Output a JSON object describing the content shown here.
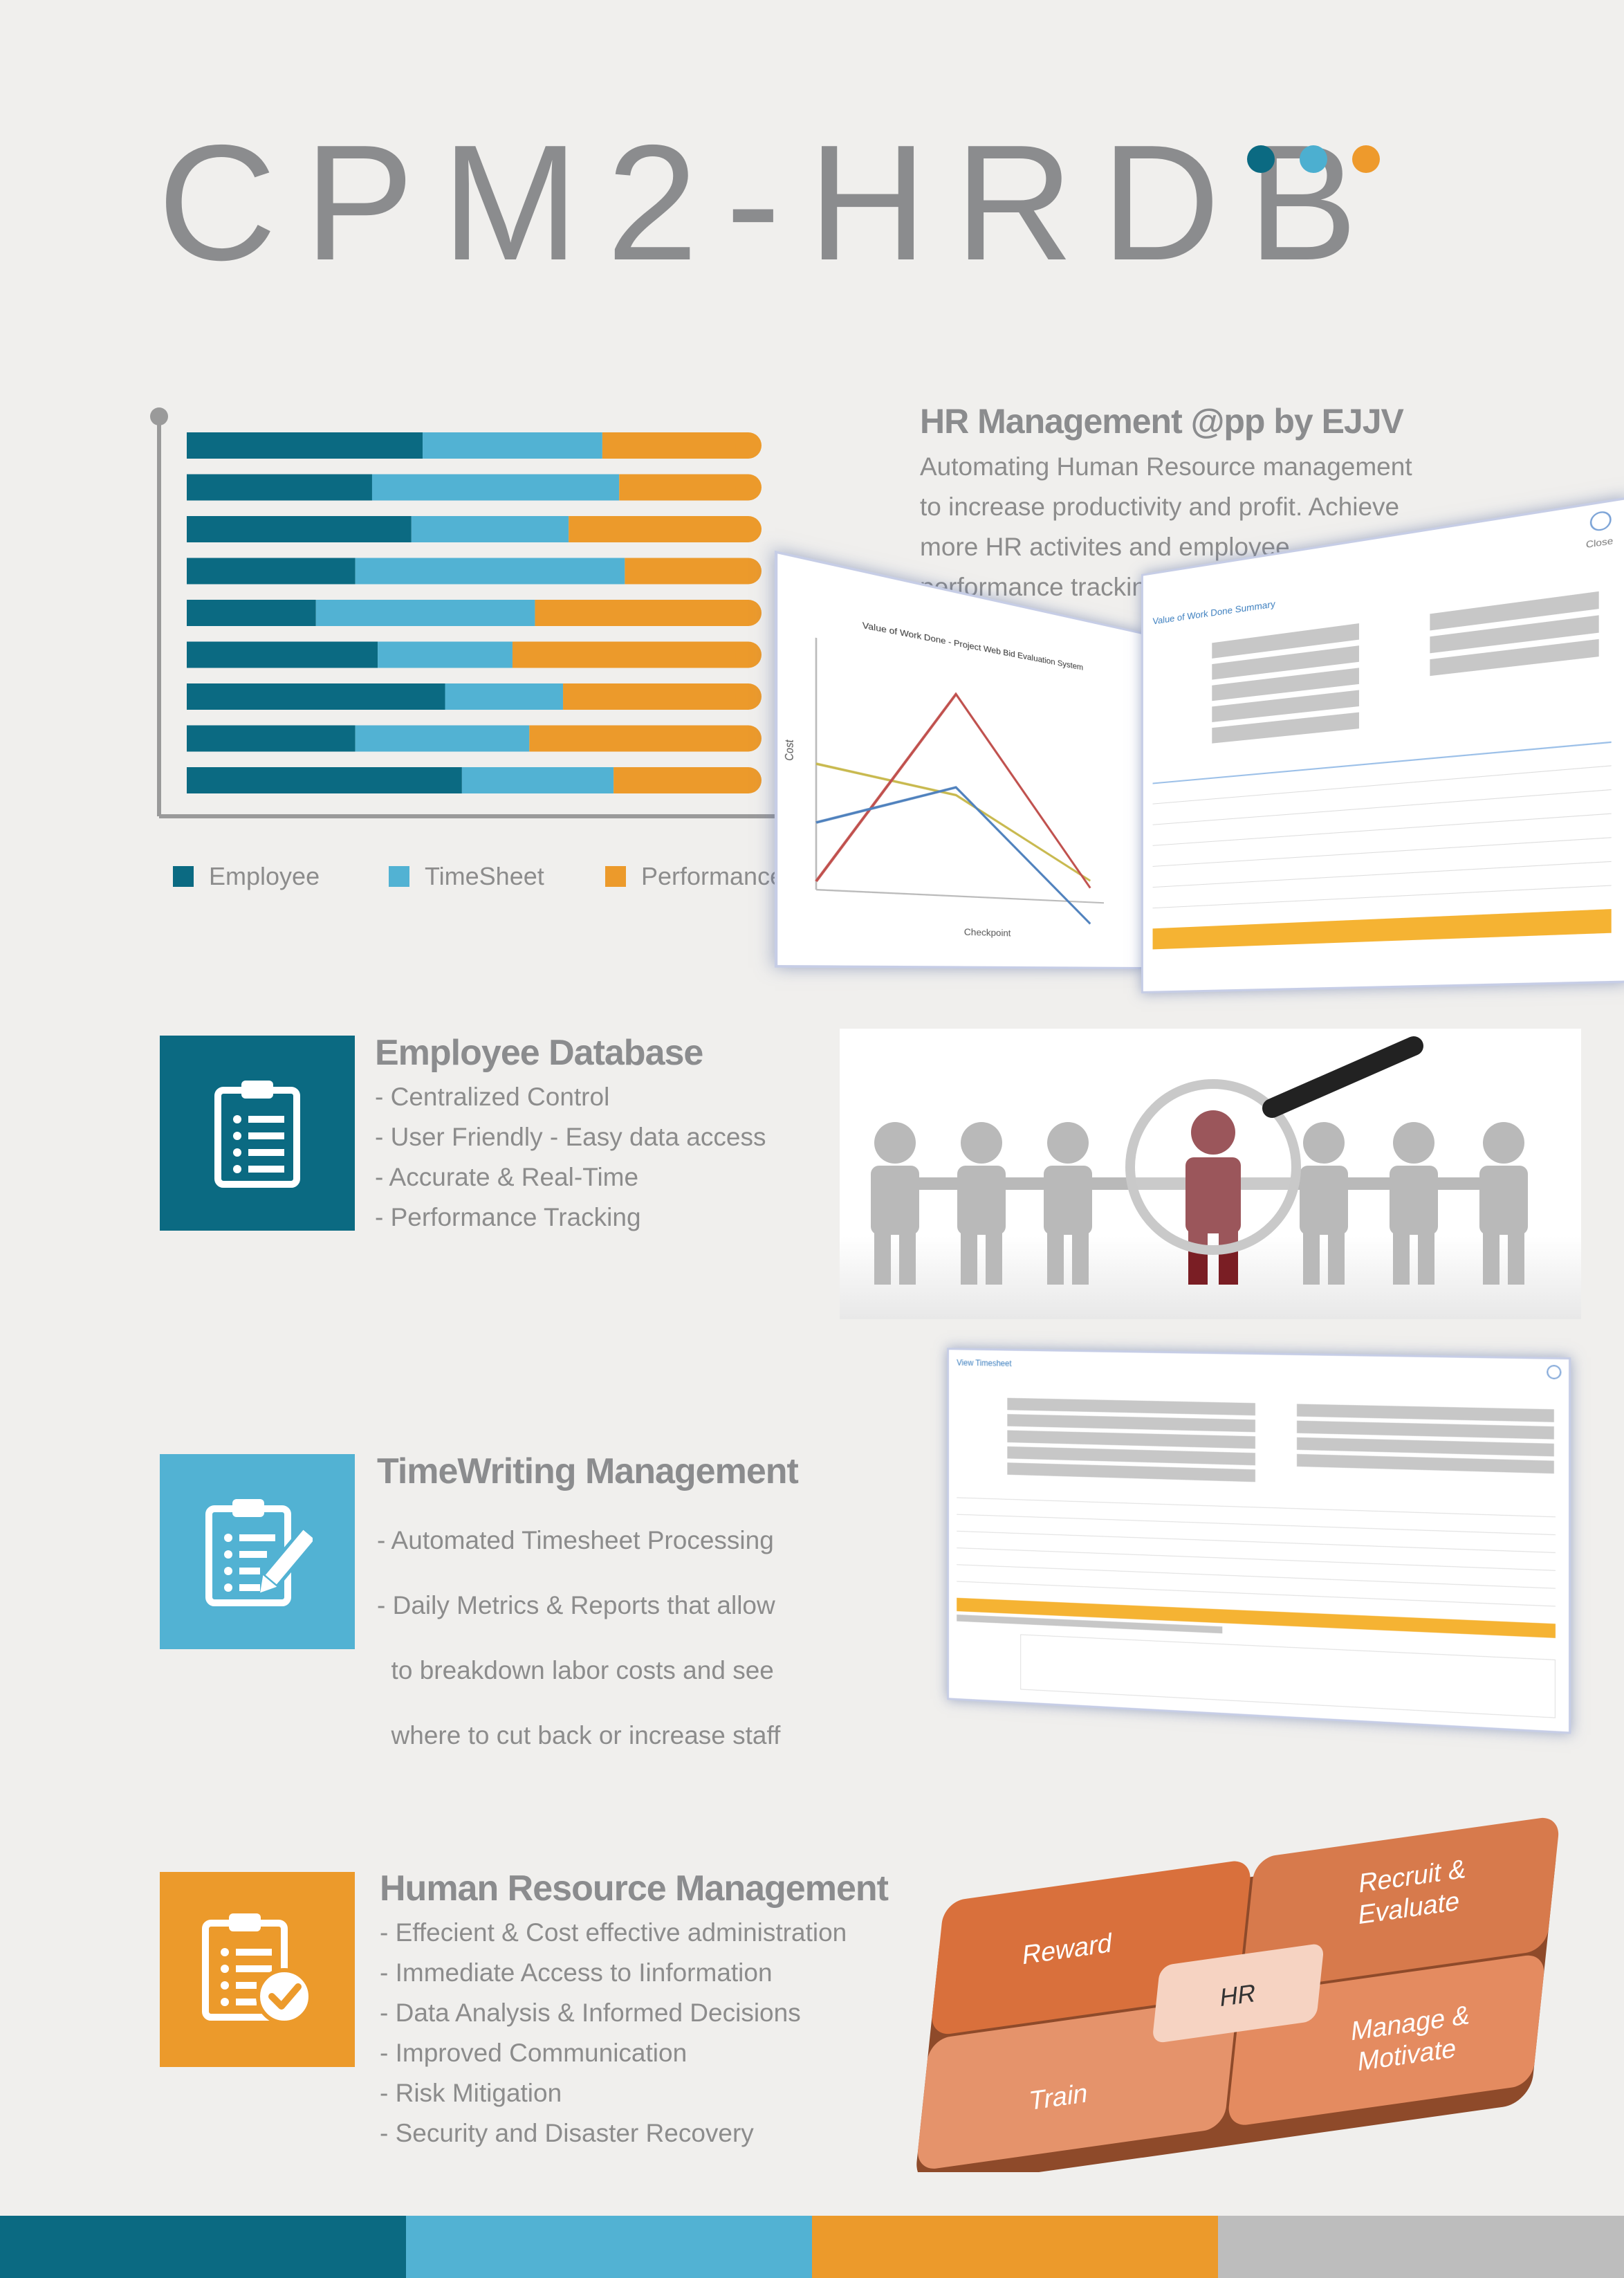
{
  "header": {
    "title": "CPM2-HRDB",
    "dot_colors": [
      "#0b6a82",
      "#4cafd0",
      "#ee9a2c"
    ]
  },
  "colors": {
    "employee": "#0b6a82",
    "timesheet": "#52b2d3",
    "performance": "#ec9a2b",
    "axis": "#9a9a9a",
    "footer": [
      "#0b6a82",
      "#52b2d3",
      "#ec9a2b",
      "#bdbdbd"
    ]
  },
  "chart_data": {
    "type": "bar",
    "orientation": "horizontal",
    "stacked": true,
    "series": [
      {
        "name": "Employee",
        "values": [
          0.42,
          0.33,
          0.4,
          0.3,
          0.23,
          0.34,
          0.46,
          0.3,
          0.49
        ]
      },
      {
        "name": "TimeSheet",
        "values": [
          0.32,
          0.44,
          0.28,
          0.48,
          0.39,
          0.24,
          0.21,
          0.31,
          0.27
        ]
      },
      {
        "name": "Performance",
        "values": [
          0.26,
          0.23,
          0.32,
          0.22,
          0.38,
          0.42,
          0.33,
          0.39,
          0.24
        ]
      }
    ],
    "legend": "bottom",
    "grid": false
  },
  "legend": {
    "employee": "Employee",
    "timesheet": "TimeSheet",
    "performance": "Performance"
  },
  "intro": {
    "heading": "HR Management @pp by EJJV",
    "lines": [
      "Automating Human Resource management",
      "to increase productivity and profit. Achieve",
      "more HR activites and employee",
      "performance tracking and monitoring."
    ]
  },
  "screenshot_value_report": {
    "chart_title": "Value of Work Done - Project Web Bid Evaluation System",
    "xlabel": "Checkpoint",
    "ylabel": "Cost",
    "form_title": "Value of Work Done Summary",
    "close_label": "Close"
  },
  "sections": {
    "employee_db": {
      "heading": "Employee Database",
      "lines": [
        "- Centralized Control",
        "- User Friendly - Easy data access",
        "- Accurate & Real-Time",
        "- Performance Tracking"
      ]
    },
    "timewriting": {
      "heading": "TimeWriting Management",
      "lines": [
        "- Automated Timesheet Processing",
        "- Daily Metrics & Reports that allow",
        "  to breakdown labor costs and see",
        "  where to cut back or increase staff"
      ],
      "screenshot_title": "View Timesheet"
    },
    "hrm": {
      "heading": "Human Resource Management",
      "lines": [
        "- Effecient & Cost effective administration",
        "- Immediate Access to Iinformation",
        "- Data Analysis & Informed Decisions",
        "- Improved Communication",
        "- Risk Mitigation",
        "- Security and Disaster Recovery"
      ],
      "puzzle": {
        "center": "HR",
        "top_left": "Reward",
        "top_right_1": "Recruit &",
        "top_right_2": "Evaluate",
        "bottom_left": "Train",
        "bottom_right_1": "Manage &",
        "bottom_right_2": "Motivate"
      }
    }
  }
}
